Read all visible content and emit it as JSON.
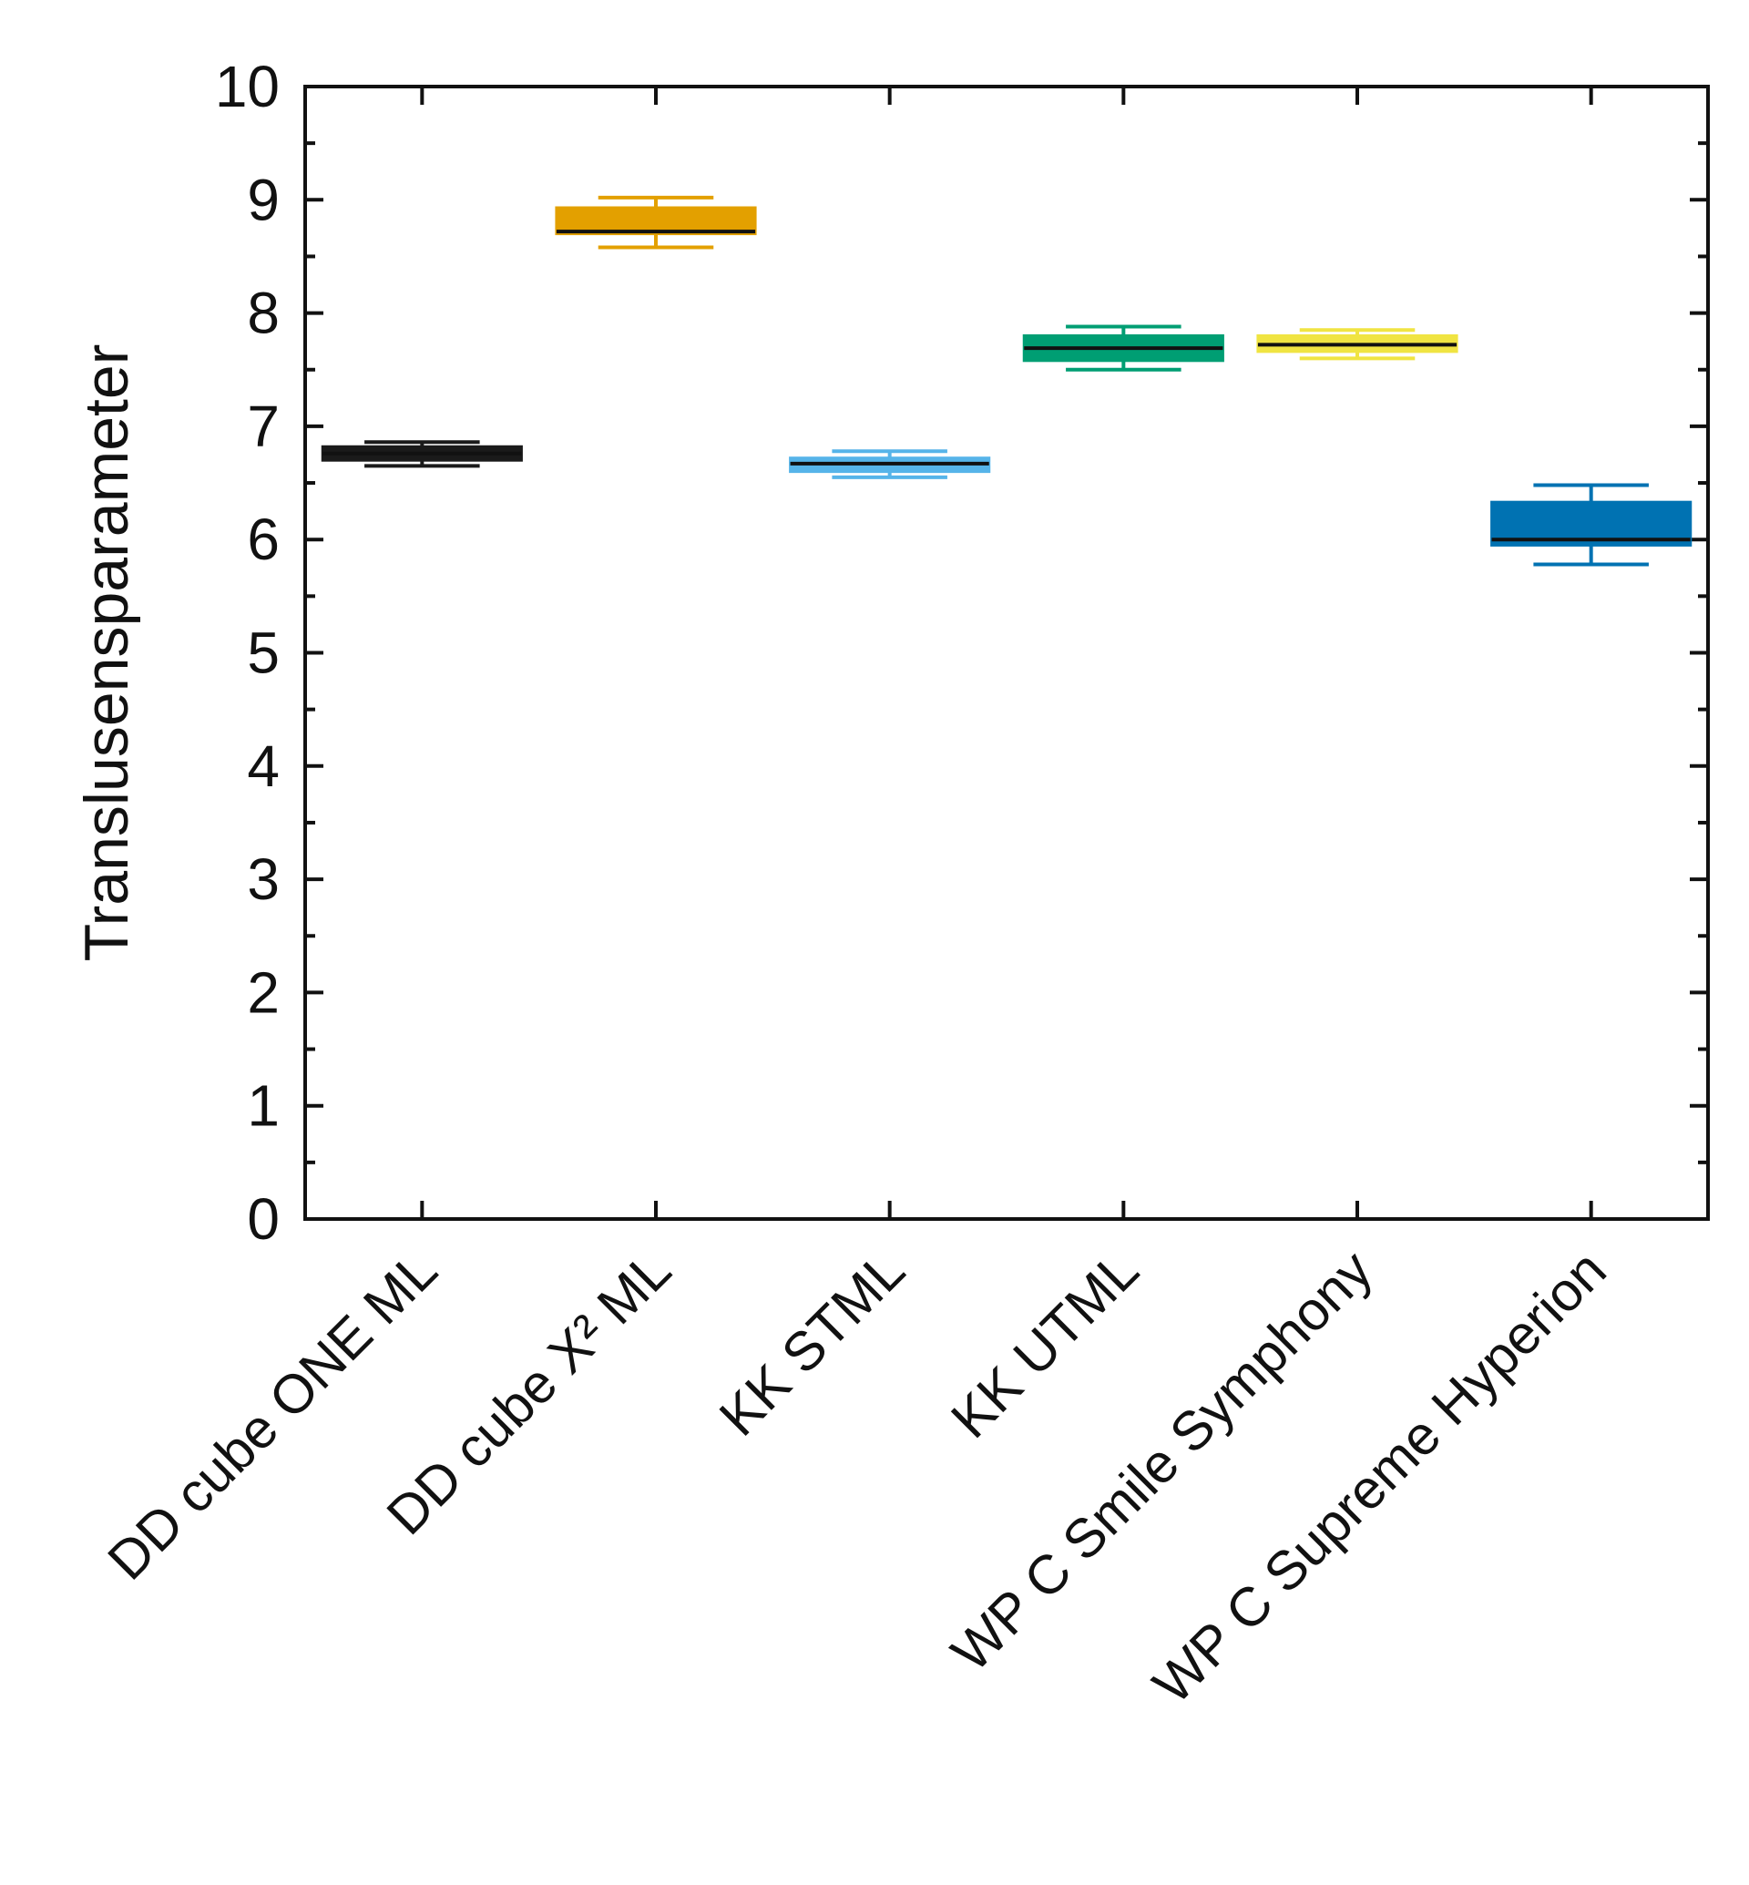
{
  "chart_data": {
    "type": "boxplot",
    "title": "",
    "xlabel": "",
    "ylabel": "Translusensparameter",
    "ylim": [
      0,
      10
    ],
    "yticks": [
      "0",
      "1",
      "2",
      "3",
      "4",
      "5",
      "6",
      "7",
      "8",
      "9",
      "10"
    ],
    "grid": false,
    "legend": "none",
    "categories": [
      "DD cube ONE ML",
      "DD cube X² ML",
      "KK STML",
      "KK UTML",
      "WP C Smile Symphony",
      "WP C Supreme Hyperion"
    ],
    "boxes": [
      {
        "category": "DD cube ONE ML",
        "min": 6.65,
        "q1": 6.7,
        "median": 6.76,
        "q3": 6.82,
        "max": 6.86,
        "color": "#1a1a1a"
      },
      {
        "category": "DD cube X² ML",
        "min": 8.58,
        "q1": 8.7,
        "median": 8.72,
        "q3": 8.93,
        "max": 9.02,
        "color": "#e3a000"
      },
      {
        "category": "KK STML",
        "min": 6.55,
        "q1": 6.6,
        "median": 6.67,
        "q3": 6.72,
        "max": 6.78,
        "color": "#56b4e9"
      },
      {
        "category": "KK UTML",
        "min": 7.5,
        "q1": 7.58,
        "median": 7.69,
        "q3": 7.8,
        "max": 7.88,
        "color": "#009e73"
      },
      {
        "category": "WP C Smile Symphony",
        "min": 7.6,
        "q1": 7.66,
        "median": 7.72,
        "q3": 7.8,
        "max": 7.85,
        "color": "#f0e442"
      },
      {
        "category": "WP C Supreme Hyperion",
        "min": 5.78,
        "q1": 5.95,
        "median": 6.0,
        "q3": 6.33,
        "max": 6.48,
        "color": "#0072b2"
      }
    ]
  }
}
